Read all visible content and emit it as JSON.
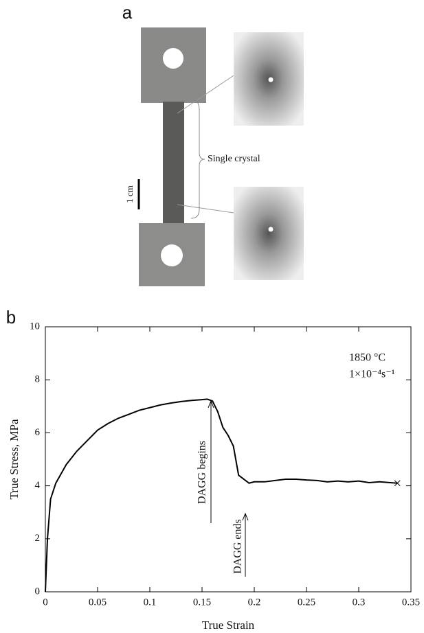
{
  "panel_a": {
    "label": "a",
    "annotation": "Single crystal",
    "scale_label": "1 cm"
  },
  "chart_data": {
    "type": "line",
    "panel_label": "b",
    "x_label": "True Strain",
    "y_label": "True Stress, MPa",
    "annotations": [
      "1850 °C",
      "1×10⁻⁴s⁻¹",
      "DAGG begins",
      "DAGG ends"
    ],
    "x": [
      0,
      0.002,
      0.005,
      0.01,
      0.02,
      0.03,
      0.04,
      0.05,
      0.06,
      0.07,
      0.08,
      0.09,
      0.1,
      0.11,
      0.12,
      0.13,
      0.14,
      0.15,
      0.155,
      0.16,
      0.165,
      0.17,
      0.175,
      0.18,
      0.185,
      0.19,
      0.195,
      0.2,
      0.21,
      0.22,
      0.23,
      0.24,
      0.25,
      0.26,
      0.27,
      0.28,
      0.29,
      0.3,
      0.31,
      0.32,
      0.33,
      0.337
    ],
    "series": [
      {
        "color": "#000000",
        "values": [
          0,
          2,
          3.5,
          4.1,
          4.8,
          5.3,
          5.7,
          6.1,
          6.35,
          6.55,
          6.7,
          6.85,
          6.95,
          7.05,
          7.12,
          7.18,
          7.22,
          7.25,
          7.27,
          7.2,
          6.8,
          6.2,
          5.9,
          5.5,
          4.4,
          4.25,
          4.1,
          4.15,
          4.15,
          4.2,
          4.25,
          4.25,
          4.22,
          4.2,
          4.15,
          4.18,
          4.15,
          4.18,
          4.12,
          4.15,
          4.12,
          4.1
        ]
      }
    ],
    "xlim": [
      0,
      0.35
    ],
    "xticks": [
      0,
      0.05,
      0.1,
      0.15,
      0.2,
      0.25,
      0.3,
      0.35
    ],
    "ylim": [
      0,
      10
    ],
    "yticks": [
      0,
      2,
      4,
      6,
      8,
      10
    ]
  }
}
